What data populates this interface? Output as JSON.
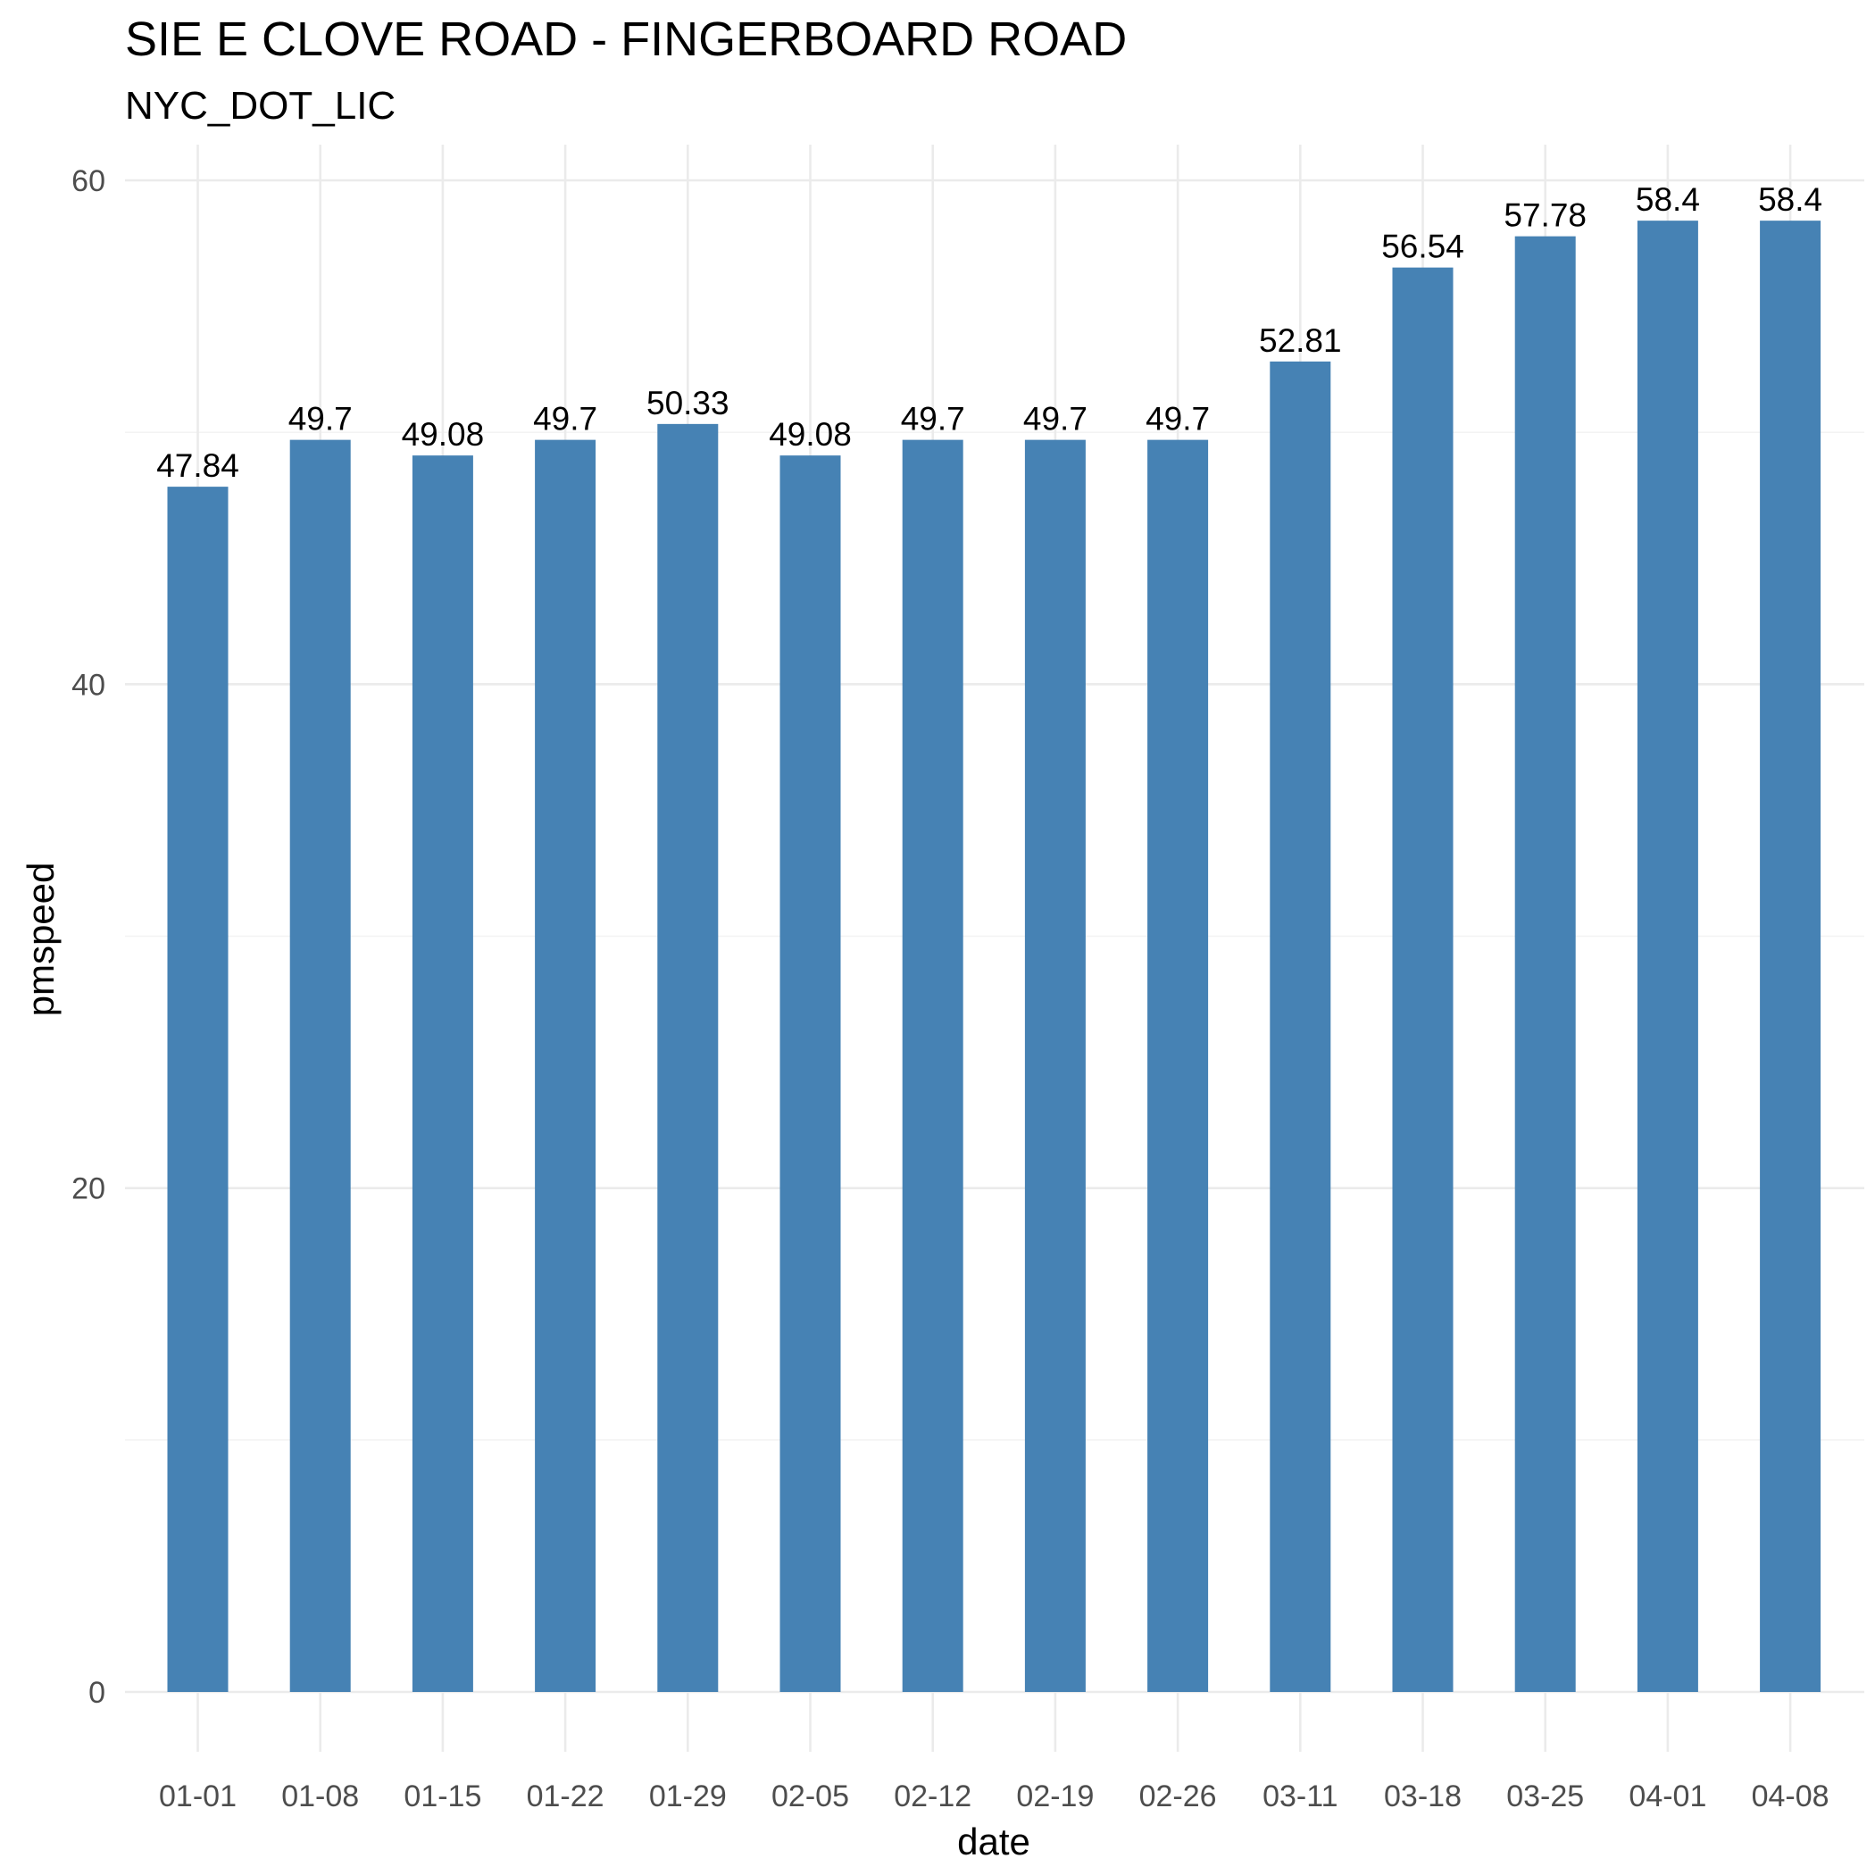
{
  "chart_data": {
    "type": "bar",
    "title": "SIE E CLOVE ROAD - FINGERBOARD ROAD",
    "subtitle": "NYC_DOT_LIC",
    "xlabel": "date",
    "ylabel": "pmspeed",
    "categories": [
      "01-01",
      "01-08",
      "01-15",
      "01-22",
      "01-29",
      "02-05",
      "02-12",
      "02-19",
      "02-26",
      "03-11",
      "03-18",
      "03-25",
      "04-01",
      "04-08"
    ],
    "values": [
      47.84,
      49.7,
      49.08,
      49.7,
      50.33,
      49.08,
      49.7,
      49.7,
      49.7,
      52.81,
      56.54,
      57.78,
      58.4,
      58.4
    ],
    "data_labels": [
      "47.84",
      "49.7",
      "49.08",
      "49.7",
      "50.33",
      "49.08",
      "49.7",
      "49.7",
      "49.7",
      "52.81",
      "56.54",
      "57.78",
      "58.4",
      "58.4"
    ],
    "yticks": [
      "0",
      "20",
      "40",
      "60"
    ],
    "ylim": [
      0,
      60
    ],
    "grid": true,
    "legend": "none",
    "bar_color": "#4682b4"
  }
}
